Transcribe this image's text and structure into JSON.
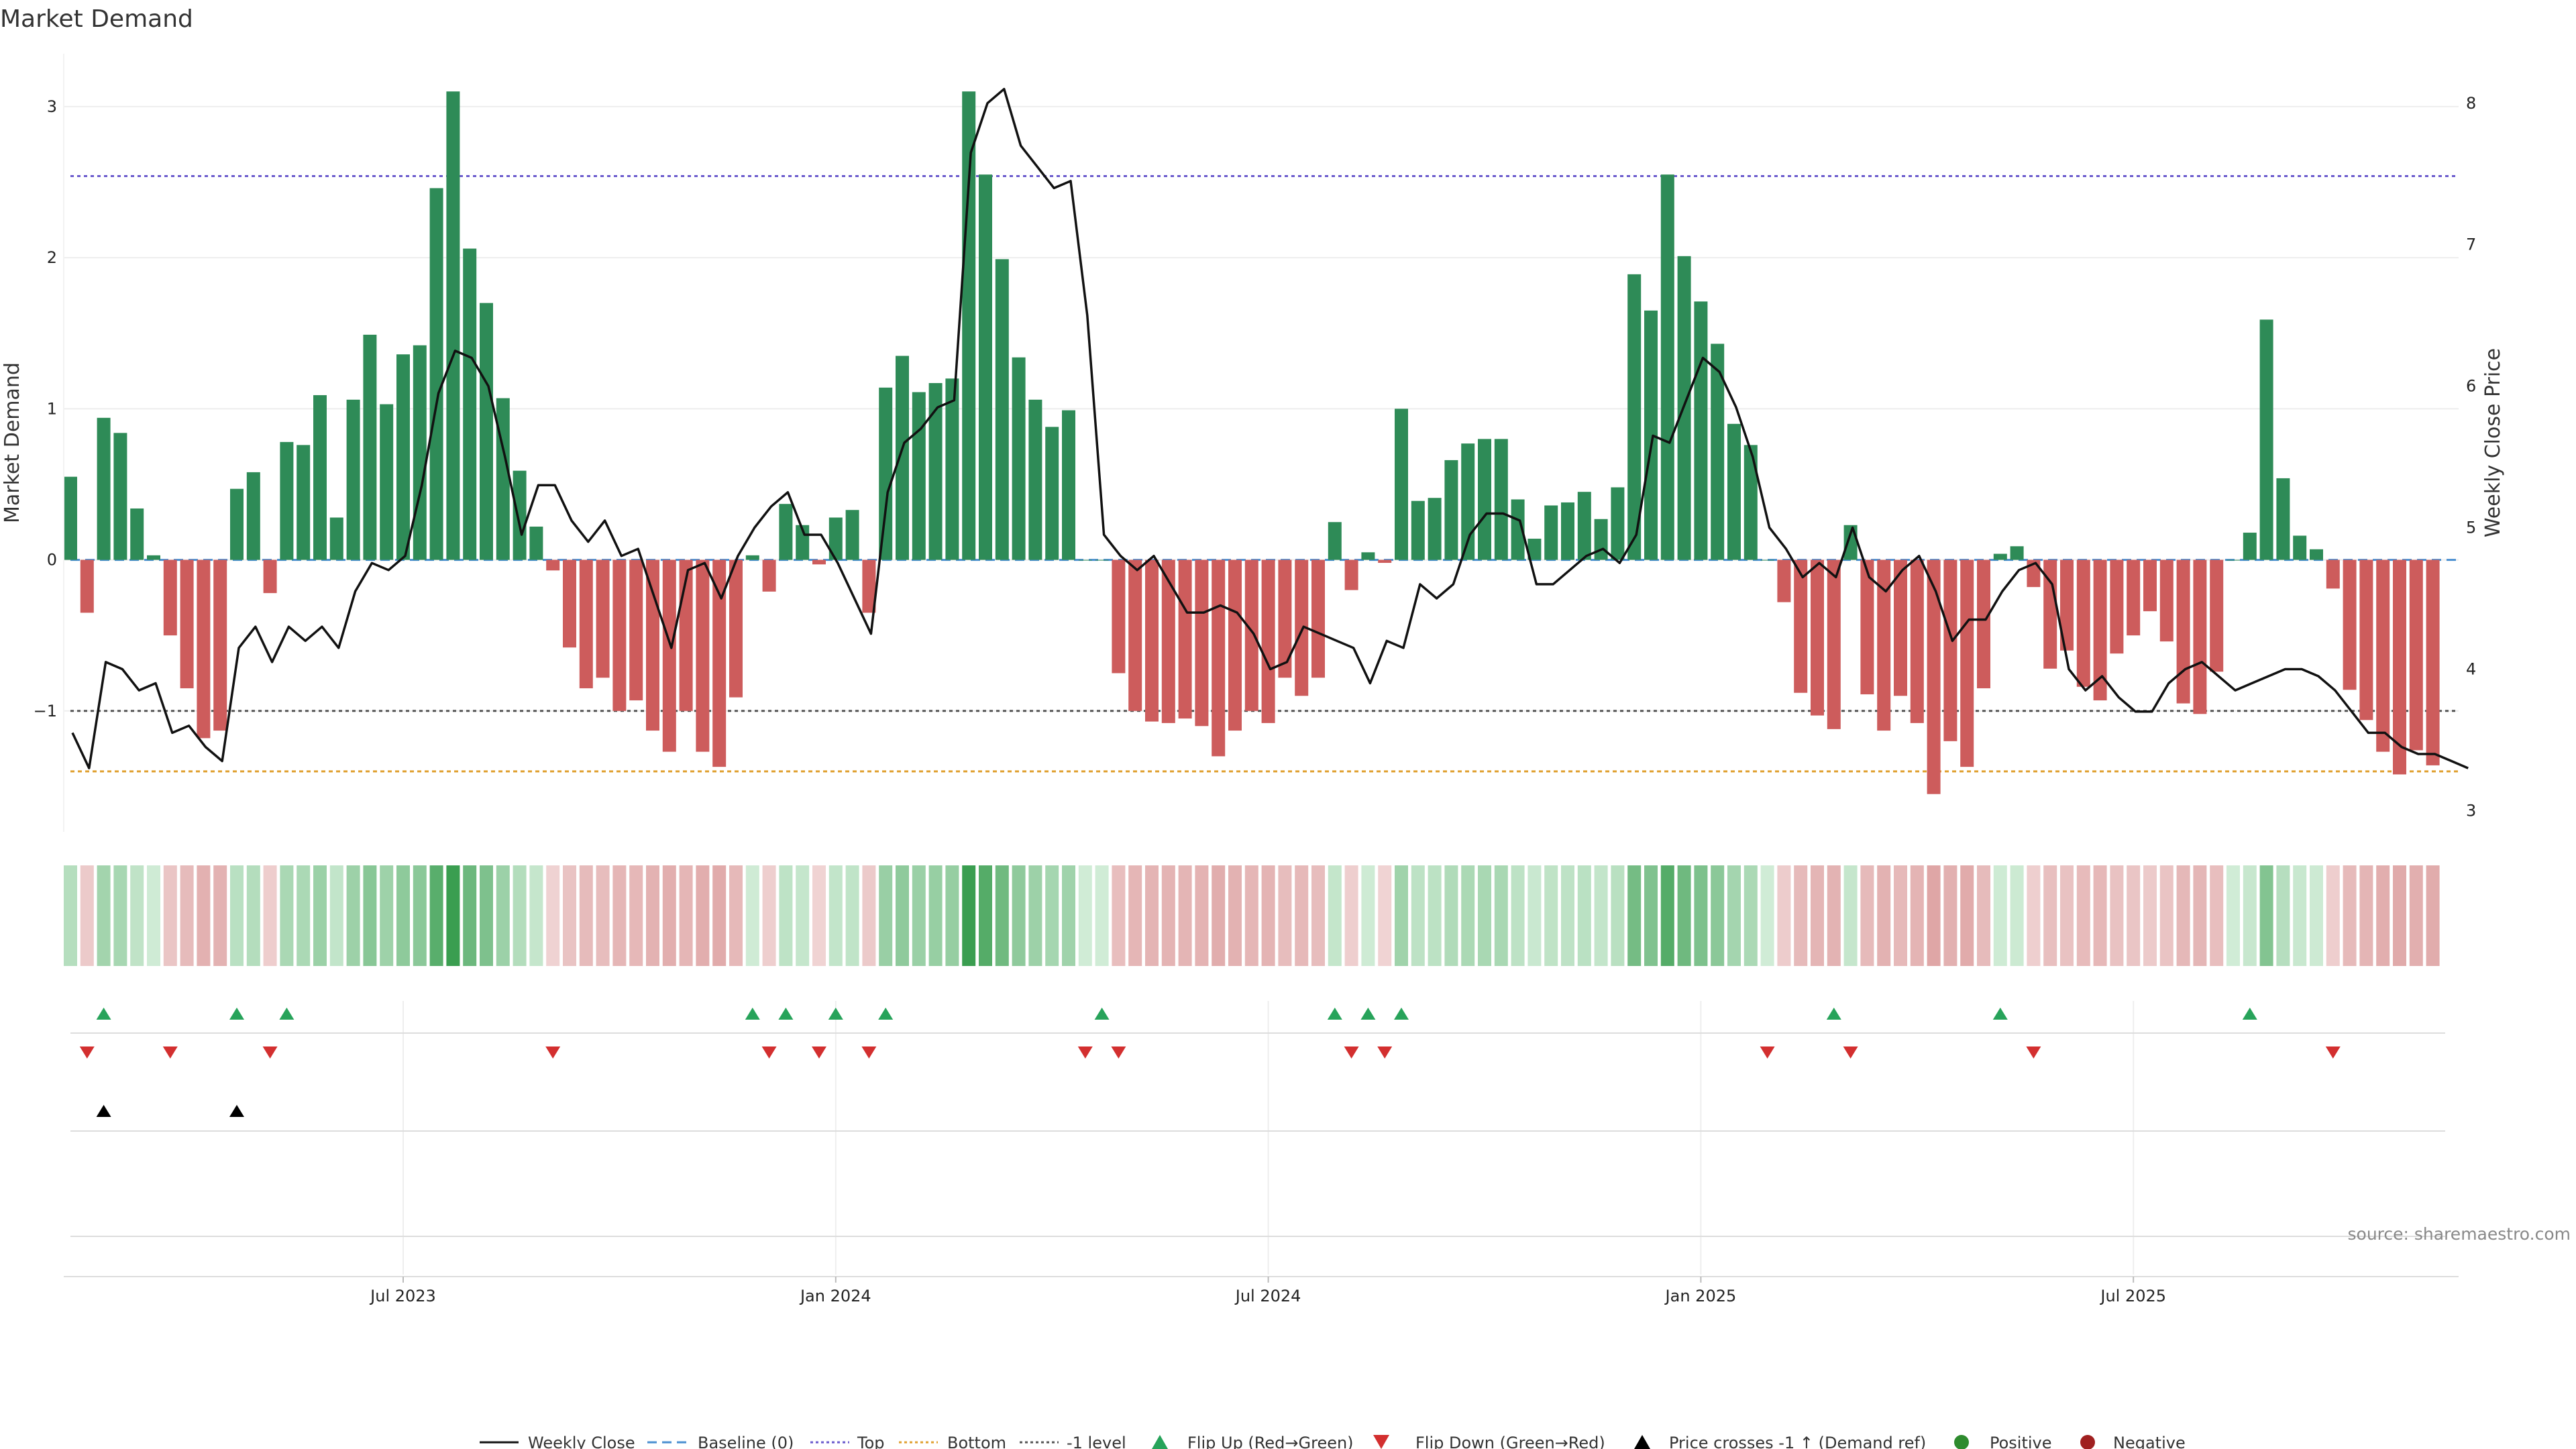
{
  "chart_data": {
    "type": "bar",
    "title": "Market Demand",
    "ylabel": "Market Demand",
    "y2label": "Weekly Close Price",
    "ylim": [
      -1.8,
      3.35
    ],
    "y2lim": [
      2.85,
      8.35
    ],
    "yticks": [
      3,
      2,
      1,
      0,
      -1
    ],
    "y2ticks": [
      8,
      7,
      6,
      5,
      4,
      3
    ],
    "xticks": [
      {
        "label": "Jul 2023",
        "index": 20
      },
      {
        "label": "Jan 2024",
        "index": 46
      },
      {
        "label": "Jul 2024",
        "index": 72
      },
      {
        "label": "Jan 2025",
        "index": 98
      },
      {
        "label": "Jul 2025",
        "index": 124
      }
    ],
    "reference_lines": {
      "baseline": 0,
      "top": 2.54,
      "bottom": -1.4,
      "minus_one": -1
    },
    "series": [
      {
        "name": "Market Demand",
        "values": [
          0.55,
          -0.35,
          0.94,
          0.84,
          0.34,
          0.03,
          -0.5,
          -0.85,
          -1.18,
          -1.13,
          0.47,
          0.58,
          -0.22,
          0.78,
          0.76,
          1.09,
          0.28,
          1.06,
          1.49,
          1.03,
          1.36,
          1.42,
          2.46,
          3.1,
          2.06,
          1.7,
          1.07,
          0.59,
          0.22,
          -0.07,
          -0.58,
          -0.85,
          -0.78,
          -1.0,
          -0.93,
          -1.13,
          -1.27,
          -1.0,
          -1.27,
          -1.37,
          -0.91,
          0.03,
          -0.21,
          0.37,
          0.23,
          -0.03,
          0.28,
          0.33,
          -0.35,
          1.14,
          1.35,
          1.11,
          1.17,
          1.2,
          3.1,
          2.55,
          1.99,
          1.34,
          1.06,
          0.88,
          0.99,
          0.0,
          0.0,
          -0.75,
          -1.0,
          -1.07,
          -1.08,
          -1.05,
          -1.1,
          -1.3,
          -1.13,
          -1.0,
          -1.08,
          -0.78,
          -0.9,
          -0.78,
          0.25,
          -0.2,
          0.05,
          -0.02,
          1.0,
          0.39,
          0.41,
          0.66,
          0.77,
          0.8,
          0.8,
          0.4,
          0.14,
          0.36,
          0.38,
          0.45,
          0.27,
          0.48,
          1.89,
          1.65,
          2.55,
          2.01,
          1.71,
          1.43,
          0.9,
          0.76,
          0.0,
          -0.28,
          -0.88,
          -1.03,
          -1.12,
          0.23,
          -0.89,
          -1.13,
          -0.9,
          -1.08,
          -1.55,
          -1.2,
          -1.37,
          -0.85,
          0.04,
          0.09,
          -0.18,
          -0.72,
          -0.6,
          -0.84,
          -0.93,
          -0.62,
          -0.5,
          -0.34,
          -0.54,
          -0.95,
          -1.02,
          -0.74,
          0.0,
          0.18,
          1.59,
          0.54,
          0.16,
          0.07,
          -0.19,
          -0.86,
          -1.06,
          -1.27,
          -1.42,
          -1.26,
          -1.36
        ]
      },
      {
        "name": "Weekly Close",
        "values": [
          3.55,
          3.3,
          4.05,
          4.0,
          3.85,
          3.9,
          3.55,
          3.6,
          3.45,
          3.35,
          4.15,
          4.3,
          4.05,
          4.3,
          4.2,
          4.3,
          4.15,
          4.55,
          4.75,
          4.7,
          4.8,
          5.3,
          5.95,
          6.25,
          6.2,
          6.0,
          5.5,
          4.95,
          5.3,
          5.3,
          5.05,
          4.9,
          5.05,
          4.8,
          4.85,
          4.5,
          4.15,
          4.7,
          4.75,
          4.5,
          4.8,
          5.0,
          5.15,
          5.25,
          4.95,
          4.95,
          4.75,
          4.5,
          4.25,
          5.25,
          5.6,
          5.7,
          5.85,
          5.9,
          7.65,
          8.0,
          8.1,
          7.7,
          7.55,
          7.4,
          7.45,
          6.5,
          4.95,
          4.8,
          4.7,
          4.8,
          4.6,
          4.4,
          4.4,
          4.45,
          4.4,
          4.25,
          4.0,
          4.05,
          4.3,
          4.25,
          4.2,
          4.15,
          3.9,
          4.2,
          4.15,
          4.6,
          4.5,
          4.6,
          4.95,
          5.1,
          5.1,
          5.05,
          4.6,
          4.6,
          4.7,
          4.8,
          4.85,
          4.75,
          4.95,
          5.65,
          5.6,
          5.9,
          6.2,
          6.1,
          5.85,
          5.5,
          5.0,
          4.85,
          4.65,
          4.75,
          4.65,
          5.0,
          4.65,
          4.55,
          4.7,
          4.8,
          4.55,
          4.2,
          4.35,
          4.35,
          4.55,
          4.7,
          4.75,
          4.6,
          4.0,
          3.85,
          3.95,
          3.8,
          3.7,
          3.7,
          3.9,
          4.0,
          4.05,
          3.95,
          3.85,
          3.9,
          3.95,
          4.0,
          4.0,
          3.95,
          3.85,
          3.7,
          3.55,
          3.55,
          3.45,
          3.4,
          3.4,
          3.35,
          3.3
        ]
      }
    ],
    "flip_up_indices": [
      2,
      10,
      13,
      41,
      43,
      46,
      49,
      62,
      76,
      78,
      80,
      106,
      116,
      131
    ],
    "flip_down_indices": [
      1,
      6,
      12,
      29,
      42,
      45,
      48,
      61,
      63,
      77,
      79,
      102,
      107,
      118,
      136
    ],
    "price_cross_indices": [
      2,
      10
    ]
  },
  "legend": {
    "weekly_close": "Weekly Close",
    "baseline": "Baseline (0)",
    "top": "Top",
    "bottom": "Bottom",
    "minus_one": "-1 level",
    "flip_up": "Flip Up (Red→Green)",
    "flip_down": "Flip Down (Green→Red)",
    "price_cross": "Price crosses -1 ↑ (Demand ref)",
    "positive": "Positive",
    "negative": "Negative"
  },
  "source": "source: sharemaestro.com",
  "colors": {
    "positive": "#2e8b57",
    "negative": "#cd5c5c",
    "price": "#111111",
    "baseline": "#4a8fd0",
    "top": "#6a5acd",
    "bottom": "#e0a030",
    "minus_one": "#555555",
    "flip_up": "#27a35a",
    "flip_down": "#d32f2f",
    "positive_dot": "#2e8b2e",
    "negative_dot": "#a02020"
  }
}
